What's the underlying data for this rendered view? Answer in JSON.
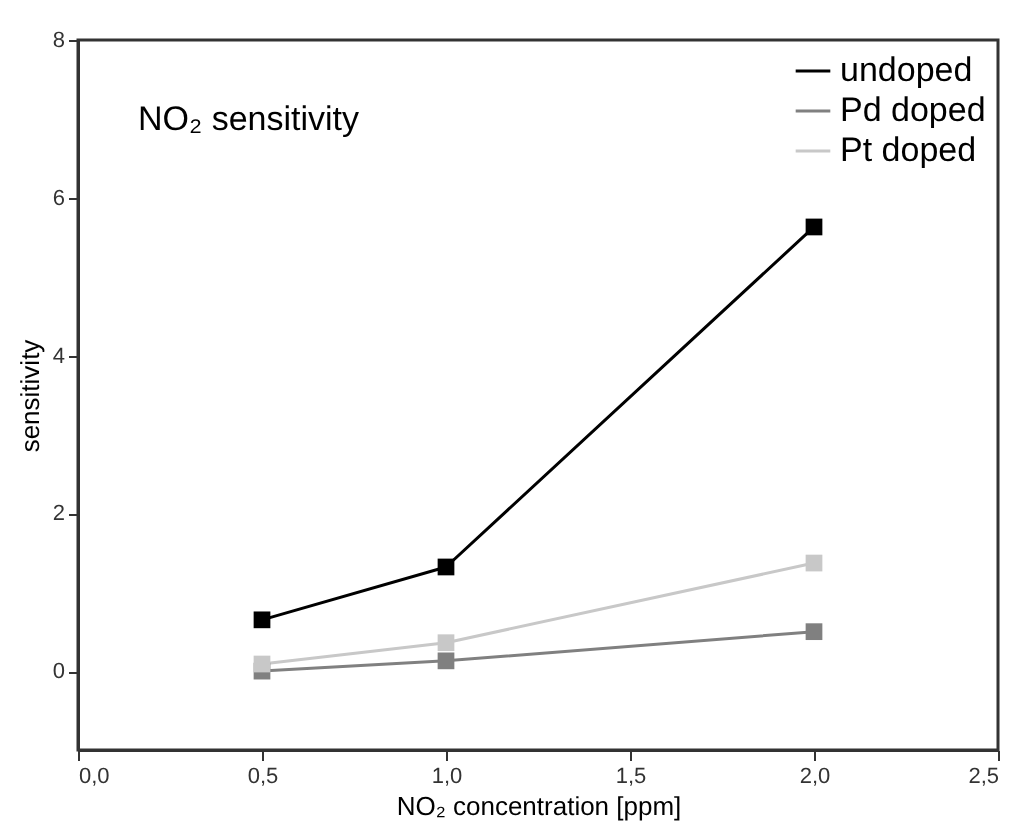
{
  "chart_data": {
    "type": "line",
    "annotations": [
      "NO₂ sensitivity"
    ],
    "xlabel": "NO₂ concentration [ppm]",
    "ylabel": "sensitivity",
    "x": [
      0.5,
      1.0,
      2.0
    ],
    "series": [
      {
        "name": "undoped",
        "color": "#000000",
        "values": [
          0.65,
          1.32,
          5.63
        ]
      },
      {
        "name": "Pd doped",
        "color": "#808080",
        "values": [
          0.0,
          0.13,
          0.5
        ]
      },
      {
        "name": "Pt doped",
        "color": "#c8c8c8",
        "values": [
          0.09,
          0.36,
          1.37
        ]
      }
    ],
    "xlim": [
      0,
      2.5
    ],
    "ylim": [
      -1,
      8
    ],
    "xticks": [
      {
        "value": 0,
        "label": "0,0"
      },
      {
        "value": 0.5,
        "label": "0,5"
      },
      {
        "value": 1,
        "label": "1,0"
      },
      {
        "value": 1.5,
        "label": "1,5"
      },
      {
        "value": 2,
        "label": "2,0"
      },
      {
        "value": 2.5,
        "label": "2,5"
      }
    ],
    "yticks": [
      0,
      2,
      4,
      6,
      8
    ],
    "grid": false,
    "legend": "top right",
    "marker": "square",
    "line_style": "solid"
  }
}
